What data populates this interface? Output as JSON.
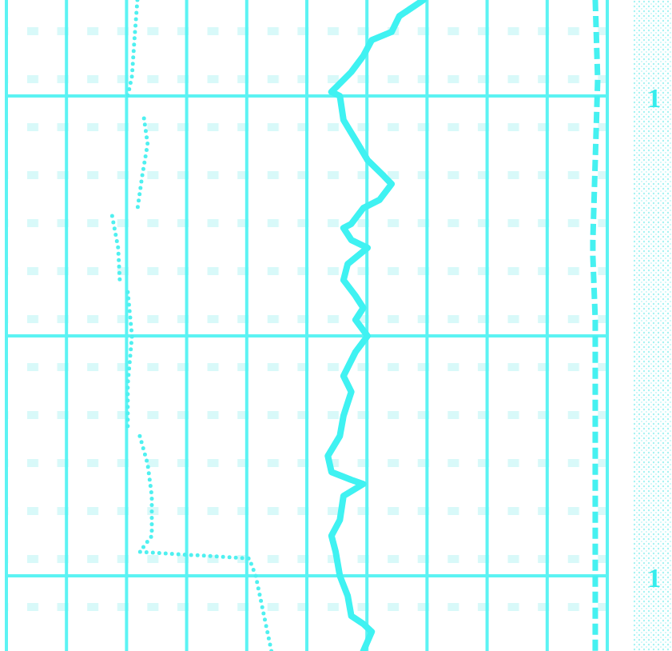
{
  "chart_data": {
    "type": "line",
    "orientation": "horizontal",
    "grid": true,
    "tick_labels": false,
    "xlim": [
      0,
      27.13
    ],
    "xticks": [
      4,
      14,
      24
    ],
    "ylim": [
      0,
      10
    ],
    "yticks": [
      0,
      1,
      2,
      3,
      4,
      5,
      6,
      7,
      8,
      9,
      10
    ],
    "color": "#5cf3f3",
    "annotations": [
      {
        "text": "1",
        "y": 4
      },
      {
        "text": "1",
        "y": 24
      }
    ],
    "series": [
      {
        "color": "#3ff2f2",
        "line_style": "solid",
        "x": [
          0,
          0.67,
          1.33,
          1.67,
          2.33,
          3.0,
          3.83,
          4.0,
          5.0,
          5.83,
          6.67,
          7.33,
          7.67,
          8.33,
          8.67,
          9.33,
          9.5,
          10.0,
          10.33,
          11.0,
          11.67,
          12.33,
          12.83,
          13.33,
          14.0,
          14.67,
          15.67,
          16.33,
          17.33,
          18.17,
          19.0,
          19.67,
          20.0,
          20.17,
          20.67,
          21.67,
          22.33,
          23.0,
          24.0,
          24.83,
          25.67,
          26.0,
          26.33,
          27.13
        ],
        "values": [
          6.94,
          6.54,
          6.41,
          6.08,
          5.94,
          5.74,
          5.41,
          5.55,
          5.61,
          5.81,
          6.01,
          6.28,
          6.41,
          6.21,
          5.94,
          5.74,
          5.61,
          5.74,
          6.01,
          5.68,
          5.61,
          5.81,
          5.94,
          5.81,
          6.01,
          5.81,
          5.61,
          5.74,
          5.61,
          5.55,
          5.35,
          5.41,
          5.74,
          5.94,
          5.61,
          5.55,
          5.41,
          5.48,
          5.55,
          5.68,
          5.74,
          5.94,
          6.08,
          5.94
        ]
      },
      {
        "color": "#4ff0f0",
        "line_style": "dotted",
        "x": [
          0,
          1.67,
          3.17,
          4.0,
          4.5,
          4.93,
          6.0,
          7.33,
          8.73,
          8.8,
          9.0,
          10.33,
          11.83,
          12.0,
          12.17,
          14.0,
          16.0,
          17.83,
          17.9,
          18.17,
          19.33,
          20.67,
          22.33,
          23.0,
          23.27,
          24.0,
          27.13
        ],
        "values": [
          2.18,
          2.13,
          2.09,
          2.02,
          null,
          2.29,
          2.35,
          2.26,
          2.18,
          null,
          1.76,
          1.86,
          1.89,
          null,
          2.02,
          2.09,
          2.02,
          2.02,
          null,
          2.22,
          2.35,
          2.42,
          2.42,
          2.22,
          4.04,
          4.15,
          4.41
        ]
      },
      {
        "color": "#45f1f1",
        "line_style": "dashed",
        "x": [
          0,
          3.33,
          6.67,
          10.0,
          10.67,
          13.33,
          16.67,
          20.0,
          23.33,
          27.13
        ],
        "values": [
          9.8,
          9.84,
          9.8,
          9.76,
          9.76,
          9.8,
          9.8,
          9.8,
          9.8,
          9.8
        ]
      }
    ]
  }
}
